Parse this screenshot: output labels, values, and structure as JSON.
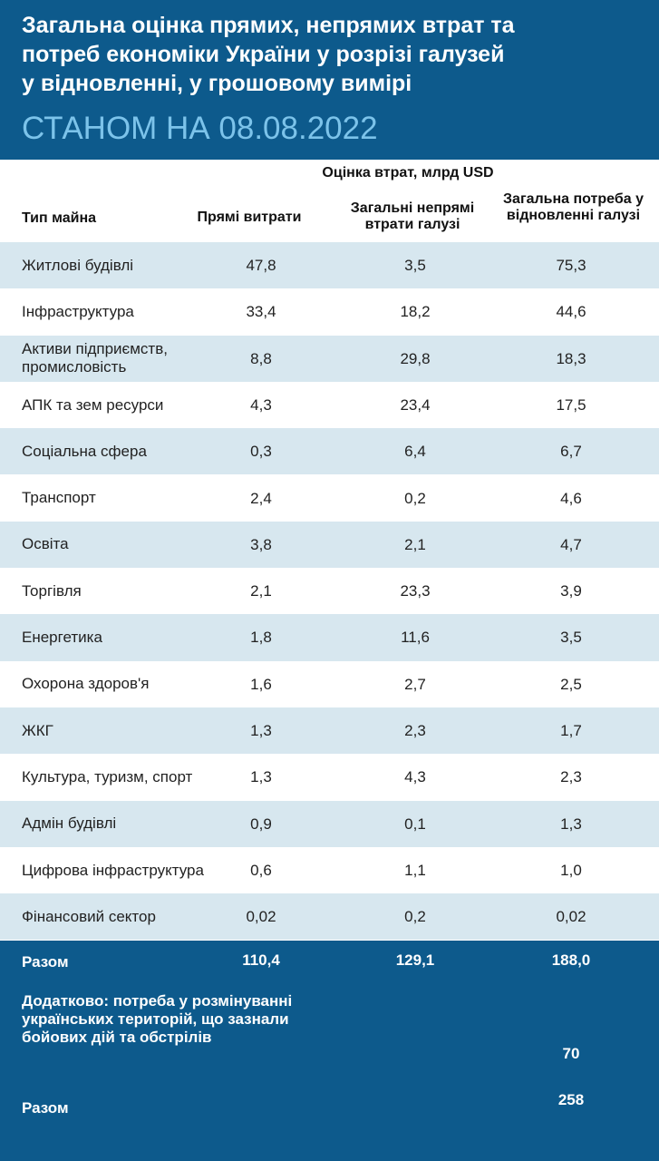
{
  "header": {
    "title": [
      "Загальна оцінка прямих, непрямих втрат та",
      "потреб економіки України у розрізі галузей",
      "у відновленні, у грошовому вимірі"
    ],
    "subtitle": "СТАНОМ НА 08.08.2022"
  },
  "table": {
    "group_header": "Оцінка втрат, млрд USD",
    "columns": [
      "Тип майна",
      "Прямі витрати",
      "Загальні непрямі втрати галузі",
      "Загальна потреба у відновленні галузі"
    ],
    "rows": [
      [
        "Житлові будівлі",
        "47,8",
        "3,5",
        "75,3"
      ],
      [
        "Інфраструктура",
        "33,4",
        "18,2",
        "44,6"
      ],
      [
        "Активи підприємств, промисловість",
        "8,8",
        "29,8",
        "18,3"
      ],
      [
        "АПК та зем ресурси",
        "4,3",
        "23,4",
        "17,5"
      ],
      [
        "Соціальна сфера",
        "0,3",
        "6,4",
        "6,7"
      ],
      [
        "Транспорт",
        "2,4",
        "0,2",
        "4,6"
      ],
      [
        "Освіта",
        "3,8",
        "2,1",
        "4,7"
      ],
      [
        "Торгівля",
        "2,1",
        "23,3",
        "3,9"
      ],
      [
        "Енергетика",
        "1,8",
        "11,6",
        "3,5"
      ],
      [
        "Охорона здоров'я",
        "1,6",
        "2,7",
        "2,5"
      ],
      [
        "ЖКГ",
        "1,3",
        "2,3",
        "1,7"
      ],
      [
        "Культура, туризм, спорт",
        "1,3",
        "4,3",
        "2,3"
      ],
      [
        "Адмін будівлі",
        "0,9",
        "0,1",
        "1,3"
      ],
      [
        "Цифрова інфраструктура",
        "0,6",
        "1,1",
        "1,0"
      ],
      [
        "Фінансовий сектор",
        "0,02",
        "0,2",
        "0,02"
      ]
    ],
    "total": [
      "Разом",
      "110,4",
      "129,1",
      "188,0"
    ]
  },
  "footer": {
    "additional": {
      "label": "Додатково: потреба у розмінуванні українських територій, що зазнали бойових дій та обстрілів",
      "value": "70"
    },
    "grand_total": {
      "label": "Разом",
      "value": "258"
    }
  }
}
